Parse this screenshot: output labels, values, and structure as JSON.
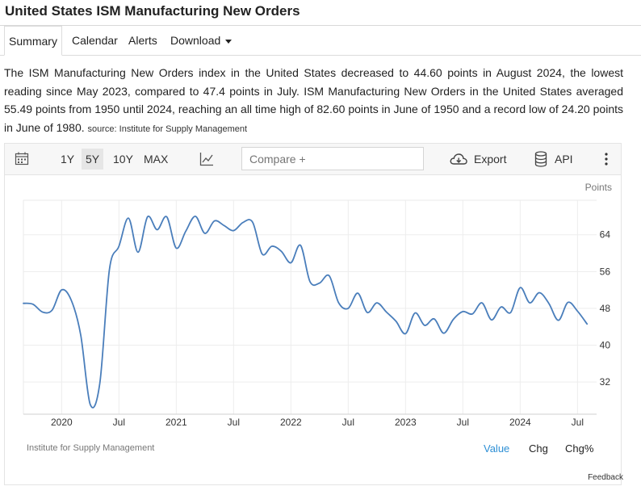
{
  "page": {
    "title": "United States ISM Manufacturing New Orders"
  },
  "tabs": [
    {
      "label": "Summary"
    },
    {
      "label": "Calendar"
    },
    {
      "label": "Alerts"
    },
    {
      "label": "Download"
    }
  ],
  "description": {
    "text": "The ISM Manufacturing New Orders index in the United States decreased to 44.60 points in August 2024, the lowest reading since May 2023, compared to 47.4 points in July. ISM Manufacturing New Orders in the United States averaged 55.49 points from 1950 until 2024, reaching an all time high of 82.60 points in June of 1950 and a record low of 24.20 points in June of 1980.",
    "source": "source: Institute for Supply Management"
  },
  "toolbar": {
    "range_1y": "1Y",
    "range_5y": "5Y",
    "range_10y": "10Y",
    "range_max": "MAX",
    "compare_placeholder": "Compare +",
    "export": "Export",
    "api": "API"
  },
  "chart_footer": {
    "source": "Institute for Supply Management",
    "value": "Value",
    "chg": "Chg",
    "chg_pct": "Chg%"
  },
  "feedback": "Feedback",
  "colors": {
    "line": "#4a7ebb",
    "active_link": "#2d8fd5"
  },
  "chart_data": {
    "type": "line",
    "title": "",
    "ylabel": "Points",
    "xlabel": "",
    "ylim": [
      25,
      71.5
    ],
    "xlim": [
      "2019-09",
      "2024-09"
    ],
    "y_ticks": [
      32,
      40,
      48,
      56,
      64
    ],
    "x_ticks": [
      {
        "label": "2020",
        "date": "2020-01"
      },
      {
        "label": "Jul",
        "date": "2020-07"
      },
      {
        "label": "2021",
        "date": "2021-01"
      },
      {
        "label": "Jul",
        "date": "2021-07"
      },
      {
        "label": "2022",
        "date": "2022-01"
      },
      {
        "label": "Jul",
        "date": "2022-07"
      },
      {
        "label": "2023",
        "date": "2023-01"
      },
      {
        "label": "Jul",
        "date": "2023-07"
      },
      {
        "label": "2024",
        "date": "2024-01"
      },
      {
        "label": "Jul",
        "date": "2024-07"
      }
    ],
    "grid": true,
    "series": [
      {
        "name": "",
        "dates": [
          "2019-09",
          "2019-10",
          "2019-11",
          "2019-12",
          "2020-01",
          "2020-02",
          "2020-03",
          "2020-04",
          "2020-05",
          "2020-06",
          "2020-07",
          "2020-08",
          "2020-09",
          "2020-10",
          "2020-11",
          "2020-12",
          "2021-01",
          "2021-02",
          "2021-03",
          "2021-04",
          "2021-05",
          "2021-06",
          "2021-07",
          "2021-08",
          "2021-09",
          "2021-10",
          "2021-11",
          "2021-12",
          "2022-01",
          "2022-02",
          "2022-03",
          "2022-04",
          "2022-05",
          "2022-06",
          "2022-07",
          "2022-08",
          "2022-09",
          "2022-10",
          "2022-11",
          "2022-12",
          "2023-01",
          "2023-02",
          "2023-03",
          "2023-04",
          "2023-05",
          "2023-06",
          "2023-07",
          "2023-08",
          "2023-09",
          "2023-10",
          "2023-11",
          "2023-12",
          "2024-01",
          "2024-02",
          "2024-03",
          "2024-04",
          "2024-05",
          "2024-06",
          "2024-07",
          "2024-08"
        ],
        "values": [
          49.1,
          48.9,
          47.2,
          47.6,
          52.0,
          49.8,
          42.2,
          27.1,
          31.8,
          56.4,
          61.5,
          67.6,
          60.2,
          67.9,
          65.1,
          67.9,
          61.1,
          64.8,
          68.0,
          64.3,
          67.0,
          66.0,
          64.9,
          66.7,
          66.7,
          59.8,
          61.5,
          60.4,
          57.9,
          61.7,
          53.8,
          53.5,
          55.1,
          49.2,
          48.0,
          51.3,
          47.1,
          49.2,
          47.2,
          45.2,
          42.5,
          47.0,
          44.3,
          45.7,
          42.6,
          45.6,
          47.3,
          46.8,
          49.2,
          45.5,
          48.3,
          47.1,
          52.5,
          49.2,
          51.4,
          49.1,
          45.4,
          49.3,
          47.4,
          44.6
        ]
      }
    ]
  }
}
